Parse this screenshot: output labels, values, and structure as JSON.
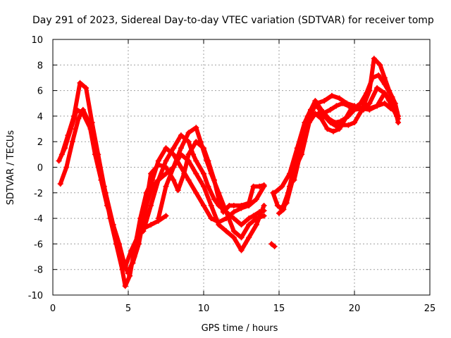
{
  "chart_data": {
    "type": "scatter",
    "title": "Day 291 of 2023, Sidereal Day-to-day VTEC variation (SDTVAR) for receiver tomp",
    "xlabel": "GPS time / hours",
    "ylabel": "SDTVAR / TECUs",
    "xlim": [
      0,
      25
    ],
    "ylim": [
      -10,
      10
    ],
    "xticks": [
      0,
      5,
      10,
      15,
      20,
      25
    ],
    "yticks": [
      -10,
      -8,
      -6,
      -4,
      -2,
      0,
      2,
      4,
      6,
      8,
      10
    ],
    "grid": true,
    "marker": "plus",
    "color": "#ff0000",
    "series": [
      {
        "points": [
          [
            0.4,
            0.5
          ],
          [
            0.8,
            1.5
          ],
          [
            1.2,
            3.0
          ],
          [
            1.6,
            4.5
          ],
          [
            2.0,
            4.2
          ],
          [
            2.5,
            3.0
          ],
          [
            3.0,
            0.5
          ],
          [
            3.5,
            -2.0
          ],
          [
            4.0,
            -4.5
          ],
          [
            4.5,
            -7.0
          ],
          [
            4.8,
            -7.8
          ],
          [
            5.2,
            -6.5
          ],
          [
            5.6,
            -5.5
          ],
          [
            6.0,
            -4.8
          ],
          [
            6.5,
            -4.5
          ],
          [
            7.0,
            -4.2
          ],
          [
            7.5,
            -3.8
          ]
        ]
      },
      {
        "points": [
          [
            0.6,
            1.0
          ],
          [
            1.0,
            2.5
          ],
          [
            1.4,
            4.0
          ],
          [
            1.8,
            6.6
          ],
          [
            2.2,
            6.2
          ],
          [
            2.6,
            3.5
          ],
          [
            3.0,
            1.0
          ],
          [
            3.4,
            -1.5
          ],
          [
            3.8,
            -4.0
          ],
          [
            4.2,
            -6.0
          ],
          [
            4.6,
            -8.0
          ],
          [
            4.8,
            -9.3
          ],
          [
            5.1,
            -8.5
          ],
          [
            5.4,
            -6.5
          ],
          [
            5.8,
            -4.0
          ],
          [
            6.2,
            -2.0
          ],
          [
            6.6,
            -1.0
          ],
          [
            7.0,
            0.5
          ],
          [
            7.5,
            1.5
          ],
          [
            8.0,
            1.0
          ],
          [
            8.5,
            0.0
          ],
          [
            9.0,
            -1.0
          ],
          [
            9.5,
            -2.0
          ],
          [
            10.0,
            -3.0
          ],
          [
            10.5,
            -4.0
          ],
          [
            11.0,
            -4.3
          ],
          [
            11.5,
            -4.0
          ],
          [
            12.0,
            -3.5
          ],
          [
            12.5,
            -3.2
          ],
          [
            13.0,
            -3.0
          ],
          [
            13.5,
            -2.5
          ],
          [
            14.0,
            -1.5
          ]
        ]
      },
      {
        "points": [
          [
            0.5,
            -1.3
          ],
          [
            0.9,
            0.0
          ],
          [
            1.3,
            2.0
          ],
          [
            1.7,
            3.8
          ],
          [
            2.0,
            4.5
          ],
          [
            2.4,
            3.5
          ],
          [
            2.8,
            1.0
          ],
          [
            3.2,
            -1.0
          ],
          [
            3.6,
            -3.0
          ],
          [
            4.0,
            -4.5
          ],
          [
            4.4,
            -6.0
          ],
          [
            4.8,
            -7.8
          ],
          [
            5.0,
            -8.3
          ],
          [
            5.4,
            -7.0
          ],
          [
            5.8,
            -5.0
          ],
          [
            6.2,
            -3.0
          ],
          [
            6.6,
            -1.5
          ],
          [
            7.0,
            -1.0
          ],
          [
            7.5,
            -0.5
          ],
          [
            8.0,
            0.0
          ],
          [
            8.5,
            1.0
          ],
          [
            9.0,
            0.5
          ],
          [
            9.5,
            -0.5
          ],
          [
            10.0,
            -1.5
          ],
          [
            10.5,
            -3.0
          ],
          [
            11.0,
            -4.5
          ],
          [
            11.5,
            -5.0
          ],
          [
            12.0,
            -5.5
          ],
          [
            12.5,
            -6.5
          ],
          [
            13.0,
            -5.5
          ],
          [
            13.5,
            -4.5
          ],
          [
            14.0,
            -3.0
          ]
        ]
      },
      {
        "points": [
          [
            5.3,
            -7.5
          ],
          [
            5.7,
            -6.0
          ],
          [
            6.1,
            -3.5
          ],
          [
            6.5,
            -0.5
          ],
          [
            7.0,
            0.2
          ],
          [
            7.5,
            0.0
          ],
          [
            8.0,
            -1.0
          ],
          [
            8.3,
            -1.8
          ],
          [
            8.7,
            -0.5
          ],
          [
            9.0,
            1.0
          ],
          [
            9.5,
            2.0
          ],
          [
            10.0,
            1.5
          ],
          [
            10.3,
            0.5
          ],
          [
            10.7,
            -1.0
          ],
          [
            11.0,
            -2.5
          ],
          [
            11.3,
            -3.5
          ],
          [
            11.7,
            -3.0
          ],
          [
            12.0,
            -3.0
          ],
          [
            12.5,
            -3.0
          ],
          [
            13.0,
            -2.8
          ],
          [
            13.3,
            -1.5
          ],
          [
            13.7,
            -1.5
          ],
          [
            14.0,
            -1.4
          ]
        ]
      },
      {
        "points": [
          [
            6.0,
            -5.0
          ],
          [
            6.5,
            -3.0
          ],
          [
            7.0,
            -1.0
          ],
          [
            7.5,
            0.5
          ],
          [
            8.0,
            1.5
          ],
          [
            8.5,
            2.5
          ],
          [
            9.0,
            2.0
          ],
          [
            9.3,
            1.0
          ],
          [
            9.5,
            0.5
          ],
          [
            10.0,
            -0.5
          ],
          [
            10.3,
            -1.5
          ],
          [
            10.7,
            -2.5
          ],
          [
            11.0,
            -3.0
          ],
          [
            11.5,
            -3.5
          ],
          [
            12.0,
            -4.0
          ],
          [
            12.5,
            -4.5
          ],
          [
            13.0,
            -4.0
          ],
          [
            13.3,
            -3.8
          ],
          [
            13.7,
            -3.5
          ],
          [
            14.0,
            -3.4
          ]
        ]
      },
      {
        "points": [
          [
            7.0,
            -4.0
          ],
          [
            7.5,
            -1.5
          ],
          [
            8.0,
            0.0
          ],
          [
            8.5,
            1.5
          ],
          [
            9.0,
            2.7
          ],
          [
            9.5,
            3.1
          ],
          [
            9.8,
            2.0
          ],
          [
            10.2,
            0.5
          ],
          [
            10.5,
            -0.5
          ],
          [
            11.0,
            -2.0
          ],
          [
            11.5,
            -3.5
          ],
          [
            12.0,
            -5.0
          ],
          [
            12.5,
            -5.5
          ],
          [
            13.0,
            -4.5
          ],
          [
            13.5,
            -4.0
          ],
          [
            14.0,
            -3.8
          ]
        ]
      },
      {
        "points": [
          [
            14.5,
            -6.0
          ],
          [
            14.7,
            -6.2
          ]
        ]
      },
      {
        "points": [
          [
            14.6,
            -2.0
          ],
          [
            14.9,
            -3.0
          ],
          [
            15.2,
            -3.3
          ],
          [
            15.6,
            -2.0
          ],
          [
            16.0,
            0.0
          ],
          [
            16.5,
            2.0
          ],
          [
            16.9,
            4.0
          ],
          [
            17.4,
            5.2
          ],
          [
            17.8,
            4.5
          ],
          [
            18.3,
            3.8
          ],
          [
            18.7,
            3.5
          ],
          [
            19.1,
            3.6
          ],
          [
            19.6,
            4.0
          ],
          [
            20.0,
            4.5
          ],
          [
            20.5,
            4.6
          ],
          [
            21.0,
            4.5
          ],
          [
            21.5,
            4.8
          ],
          [
            22.0,
            5.0
          ],
          [
            22.4,
            4.6
          ],
          [
            22.8,
            4.3
          ]
        ]
      },
      {
        "points": [
          [
            15.0,
            -3.6
          ],
          [
            15.3,
            -3.3
          ],
          [
            15.7,
            -1.5
          ],
          [
            16.1,
            0.0
          ],
          [
            16.5,
            1.0
          ],
          [
            17.0,
            3.5
          ],
          [
            17.4,
            4.2
          ],
          [
            17.8,
            3.8
          ],
          [
            18.2,
            3.0
          ],
          [
            18.6,
            2.8
          ],
          [
            19.0,
            3.0
          ],
          [
            19.4,
            3.8
          ],
          [
            19.8,
            4.6
          ],
          [
            20.2,
            4.8
          ],
          [
            20.6,
            4.5
          ],
          [
            21.0,
            5.0
          ],
          [
            21.5,
            6.2
          ],
          [
            22.0,
            5.8
          ],
          [
            22.3,
            5.2
          ],
          [
            22.8,
            4.0
          ]
        ]
      },
      {
        "points": [
          [
            14.7,
            -2.0
          ],
          [
            15.2,
            -1.5
          ],
          [
            15.7,
            -0.5
          ],
          [
            16.2,
            1.5
          ],
          [
            16.7,
            3.5
          ],
          [
            17.1,
            4.5
          ],
          [
            17.5,
            4.8
          ],
          [
            17.9,
            4.2
          ],
          [
            18.4,
            4.5
          ],
          [
            18.8,
            4.8
          ],
          [
            19.2,
            5.0
          ],
          [
            19.6,
            4.8
          ],
          [
            20.0,
            4.6
          ],
          [
            20.4,
            5.0
          ],
          [
            20.8,
            5.8
          ],
          [
            21.2,
            7.0
          ],
          [
            21.6,
            7.2
          ],
          [
            22.0,
            6.5
          ],
          [
            22.5,
            5.5
          ],
          [
            22.9,
            3.5
          ]
        ]
      },
      {
        "points": [
          [
            15.1,
            -3.2
          ],
          [
            15.5,
            -2.8
          ],
          [
            15.9,
            -1.0
          ],
          [
            16.3,
            1.0
          ],
          [
            16.8,
            3.0
          ],
          [
            17.2,
            4.0
          ],
          [
            17.6,
            4.2
          ],
          [
            18.0,
            4.0
          ],
          [
            18.4,
            3.5
          ],
          [
            18.8,
            3.2
          ],
          [
            19.2,
            3.3
          ],
          [
            19.6,
            3.3
          ],
          [
            20.0,
            3.5
          ],
          [
            20.5,
            4.5
          ],
          [
            21.0,
            6.0
          ],
          [
            21.3,
            8.5
          ],
          [
            21.7,
            8.0
          ],
          [
            22.0,
            7.0
          ],
          [
            22.3,
            6.0
          ],
          [
            22.7,
            5.0
          ],
          [
            22.9,
            4.0
          ]
        ]
      },
      {
        "points": [
          [
            16.0,
            -1.0
          ],
          [
            16.5,
            1.5
          ],
          [
            17.0,
            4.0
          ],
          [
            17.5,
            5.0
          ],
          [
            18.0,
            5.2
          ],
          [
            18.5,
            5.6
          ],
          [
            19.0,
            5.4
          ],
          [
            19.5,
            5.0
          ],
          [
            20.0,
            4.8
          ],
          [
            20.5,
            4.6
          ],
          [
            21.0,
            4.6
          ],
          [
            21.5,
            4.8
          ],
          [
            22.0,
            5.8
          ],
          [
            22.5,
            5.0
          ],
          [
            22.9,
            3.8
          ]
        ]
      }
    ]
  }
}
